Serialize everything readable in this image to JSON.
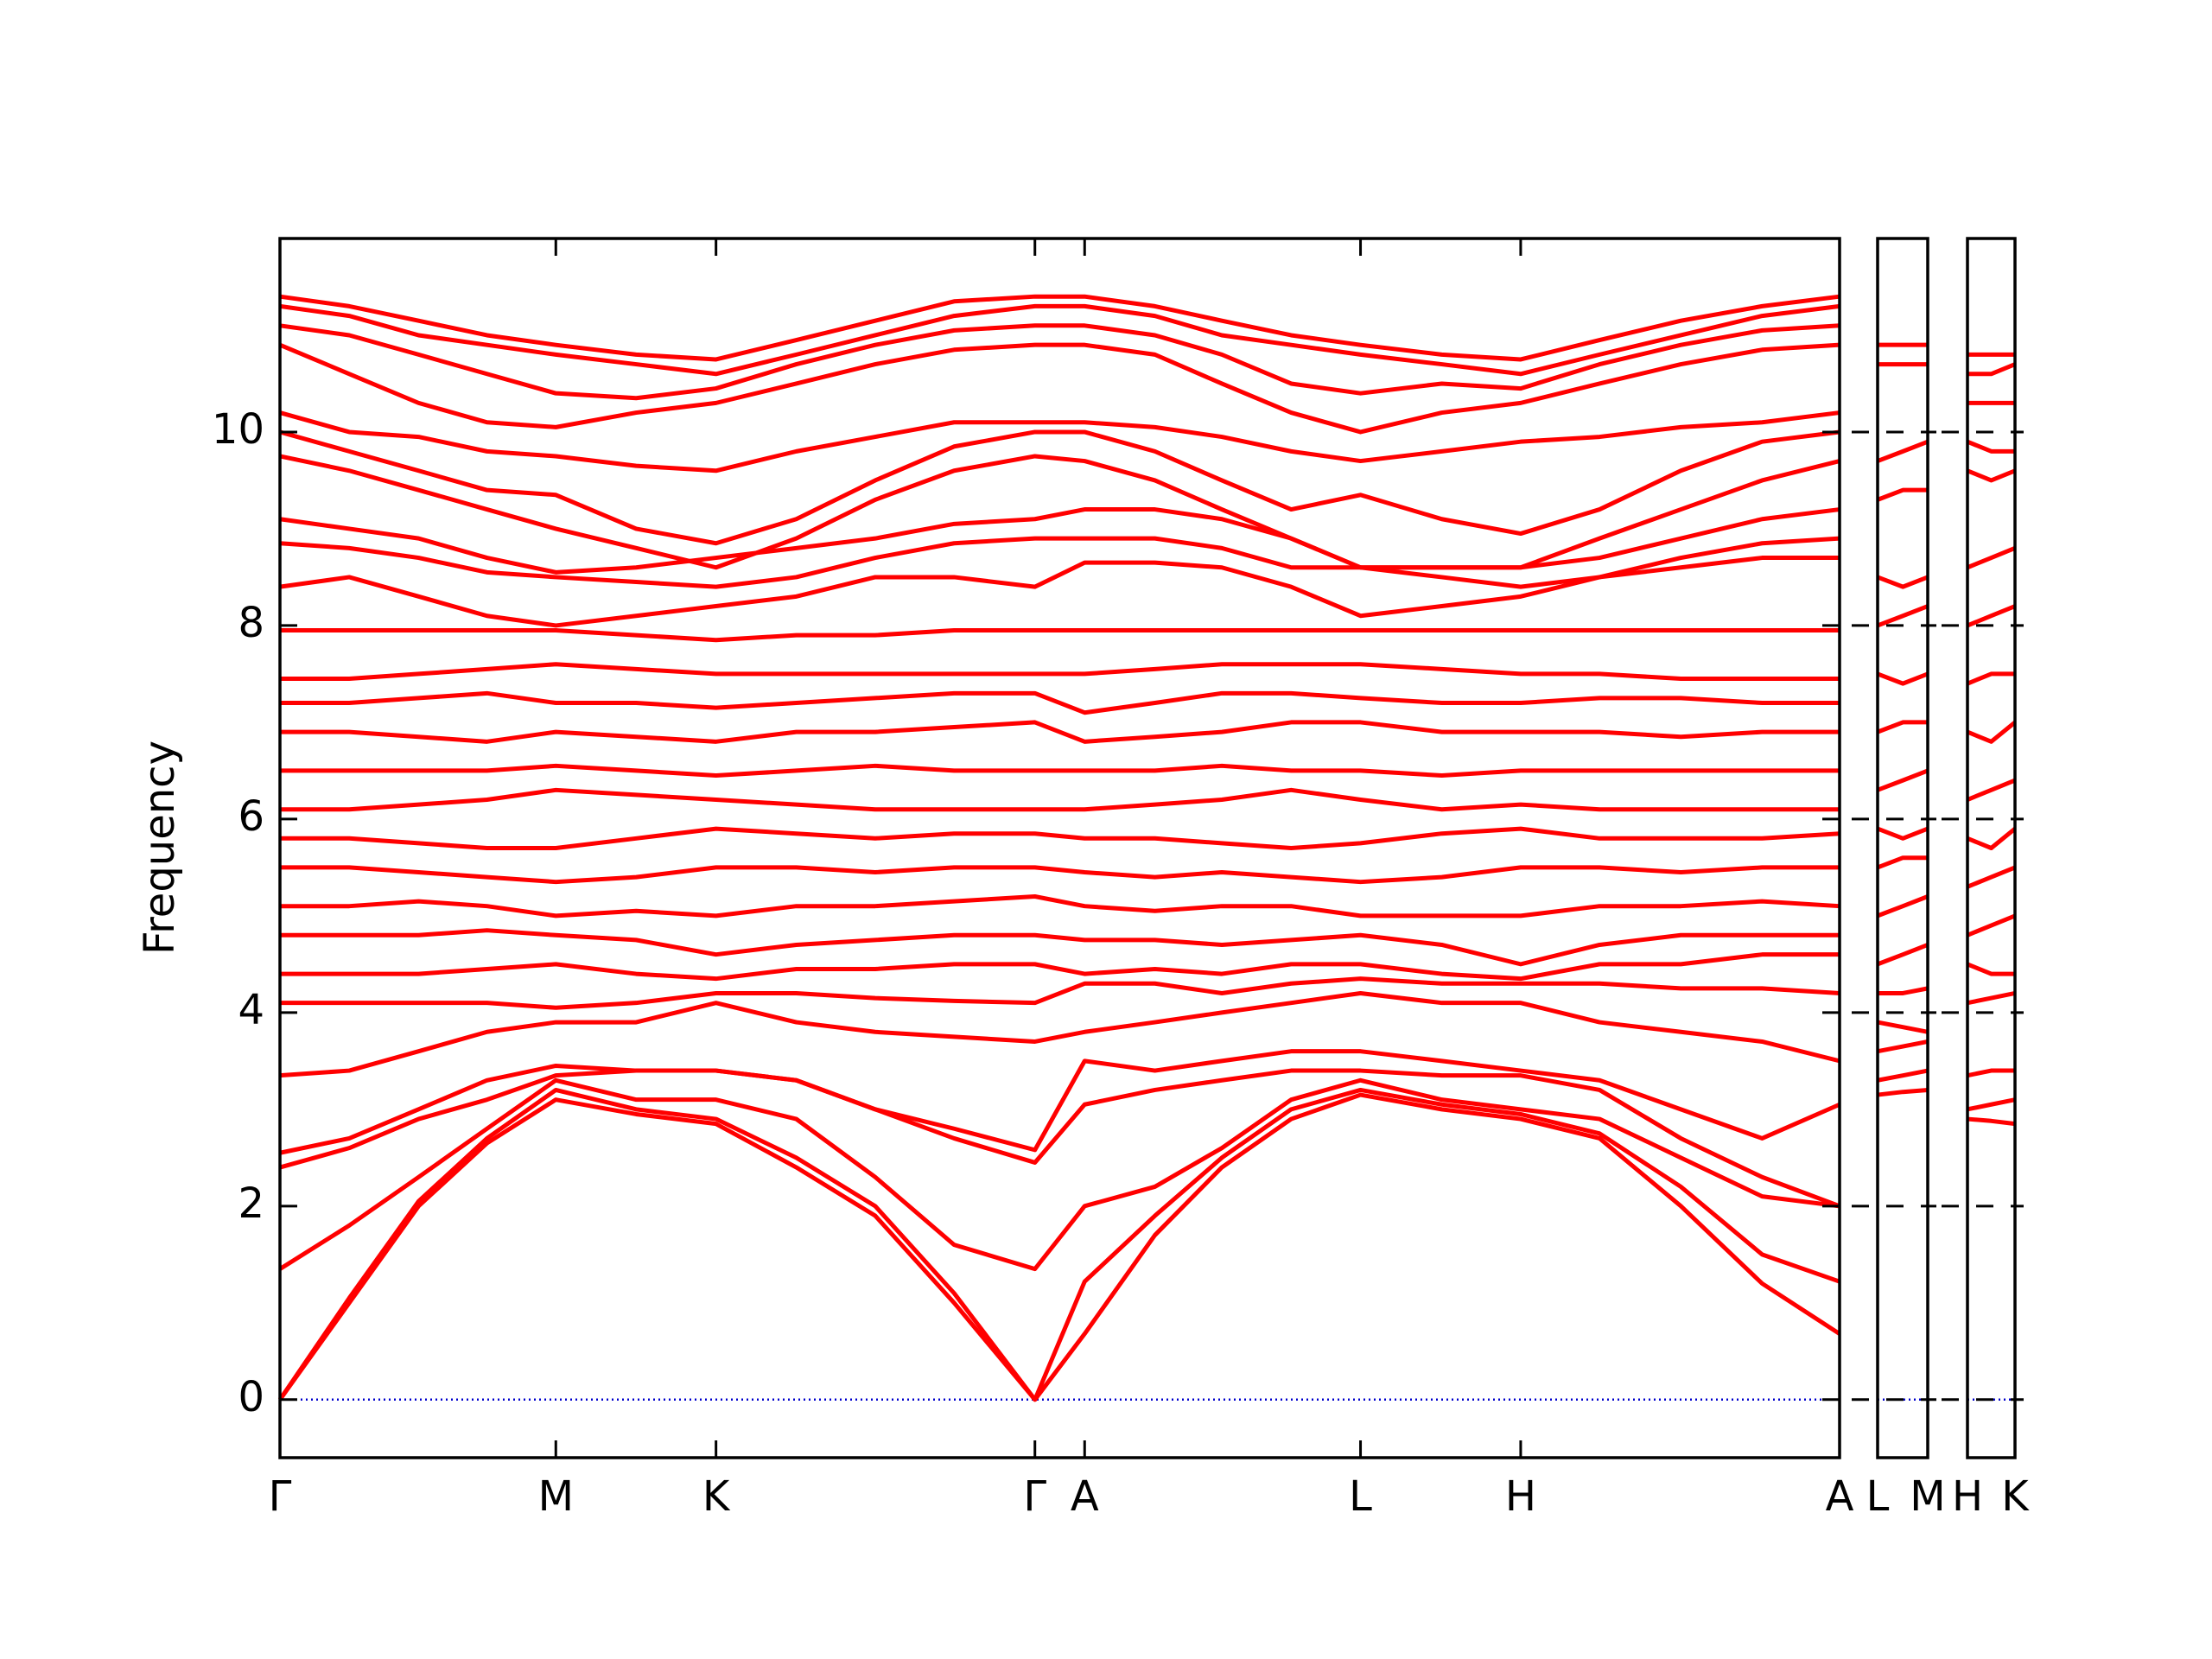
{
  "chart_data": [
    {
      "type": "line",
      "ylabel": "Frequency",
      "color": "#ff0000",
      "hline": 0,
      "hline_color": "#0000cc",
      "xlim": [
        0,
        3.262
      ],
      "ylim": [
        -0.6,
        12
      ],
      "xticks": [
        {
          "value": 0,
          "label": "Γ"
        },
        {
          "value": 0.577,
          "label": "M"
        },
        {
          "value": 0.912,
          "label": "K"
        },
        {
          "value": 1.579,
          "label": "Γ"
        },
        {
          "value": 1.683,
          "label": "A"
        },
        {
          "value": 2.26,
          "label": "L"
        },
        {
          "value": 2.595,
          "label": "H"
        },
        {
          "value": 3.262,
          "label": "A"
        }
      ],
      "yticks": [
        0,
        2,
        4,
        6,
        8,
        10
      ],
      "x": [
        0,
        0.145,
        0.29,
        0.433,
        0.577,
        0.745,
        0.912,
        1.08,
        1.245,
        1.41,
        1.579,
        1.683,
        1.83,
        1.97,
        2.115,
        2.26,
        2.43,
        2.595,
        2.76,
        2.93,
        3.1,
        3.262
      ],
      "series": [
        {
          "values": [
            0,
            1.0,
            2.0,
            2.65,
            3.1,
            2.95,
            2.85,
            2.4,
            1.9,
            1.0,
            0,
            0.68,
            1.7,
            2.4,
            2.9,
            3.15,
            3.0,
            2.9,
            2.7,
            2.0,
            1.2,
            0.68
          ]
        },
        {
          "values": [
            0,
            1.05,
            2.05,
            2.7,
            3.2,
            3.0,
            2.9,
            2.5,
            2.0,
            1.1,
            0,
            1.22,
            1.9,
            2.5,
            3.0,
            3.2,
            3.05,
            2.95,
            2.75,
            2.2,
            1.5,
            1.22
          ]
        },
        {
          "values": [
            1.35,
            1.8,
            2.3,
            2.8,
            3.3,
            3.1,
            3.1,
            2.9,
            2.3,
            1.6,
            1.35,
            2.0,
            2.2,
            2.6,
            3.1,
            3.3,
            3.1,
            3.0,
            2.9,
            2.5,
            2.1,
            2.0
          ]
        },
        {
          "values": [
            2.4,
            2.6,
            2.9,
            3.1,
            3.35,
            3.4,
            3.4,
            3.3,
            3.0,
            2.7,
            2.45,
            3.05,
            3.2,
            3.3,
            3.4,
            3.4,
            3.35,
            3.35,
            3.2,
            2.7,
            2.3,
            2.0
          ]
        },
        {
          "values": [
            2.55,
            2.7,
            3.0,
            3.3,
            3.45,
            3.4,
            3.4,
            3.3,
            3.0,
            2.8,
            2.58,
            3.5,
            3.4,
            3.5,
            3.6,
            3.6,
            3.5,
            3.4,
            3.3,
            3.0,
            2.7,
            3.05
          ]
        },
        {
          "values": [
            3.35,
            3.4,
            3.6,
            3.8,
            3.9,
            3.9,
            4.1,
            3.9,
            3.8,
            3.75,
            3.7,
            3.8,
            3.9,
            4.0,
            4.1,
            4.2,
            4.1,
            4.1,
            3.9,
            3.8,
            3.7,
            3.5
          ]
        },
        {
          "values": [
            4.1,
            4.1,
            4.1,
            4.1,
            4.05,
            4.1,
            4.2,
            4.2,
            4.15,
            4.12,
            4.1,
            4.3,
            4.3,
            4.2,
            4.3,
            4.35,
            4.3,
            4.3,
            4.3,
            4.25,
            4.25,
            4.2
          ]
        },
        {
          "values": [
            4.4,
            4.4,
            4.4,
            4.45,
            4.5,
            4.4,
            4.35,
            4.45,
            4.45,
            4.5,
            4.5,
            4.4,
            4.45,
            4.4,
            4.5,
            4.5,
            4.4,
            4.35,
            4.5,
            4.5,
            4.6,
            4.6
          ]
        },
        {
          "values": [
            4.8,
            4.8,
            4.8,
            4.85,
            4.8,
            4.75,
            4.6,
            4.7,
            4.75,
            4.8,
            4.8,
            4.75,
            4.75,
            4.7,
            4.75,
            4.8,
            4.7,
            4.5,
            4.7,
            4.8,
            4.8,
            4.8
          ]
        },
        {
          "values": [
            5.1,
            5.1,
            5.15,
            5.1,
            5.0,
            5.05,
            5.0,
            5.1,
            5.1,
            5.15,
            5.2,
            5.1,
            5.05,
            5.1,
            5.1,
            5.0,
            5.0,
            5.0,
            5.1,
            5.1,
            5.15,
            5.1
          ]
        },
        {
          "values": [
            5.5,
            5.5,
            5.45,
            5.4,
            5.35,
            5.4,
            5.5,
            5.5,
            5.45,
            5.5,
            5.5,
            5.45,
            5.4,
            5.45,
            5.4,
            5.35,
            5.4,
            5.5,
            5.5,
            5.45,
            5.5,
            5.5
          ]
        },
        {
          "values": [
            5.8,
            5.8,
            5.75,
            5.7,
            5.7,
            5.8,
            5.9,
            5.85,
            5.8,
            5.85,
            5.85,
            5.8,
            5.8,
            5.75,
            5.7,
            5.75,
            5.85,
            5.9,
            5.8,
            5.8,
            5.8,
            5.85
          ]
        },
        {
          "values": [
            6.1,
            6.1,
            6.15,
            6.2,
            6.3,
            6.25,
            6.2,
            6.15,
            6.1,
            6.1,
            6.1,
            6.1,
            6.15,
            6.2,
            6.3,
            6.2,
            6.1,
            6.15,
            6.1,
            6.1,
            6.1,
            6.1
          ]
        },
        {
          "values": [
            6.5,
            6.5,
            6.5,
            6.5,
            6.55,
            6.5,
            6.45,
            6.5,
            6.55,
            6.5,
            6.5,
            6.5,
            6.5,
            6.55,
            6.5,
            6.5,
            6.45,
            6.5,
            6.5,
            6.5,
            6.5,
            6.5
          ]
        },
        {
          "values": [
            6.9,
            6.9,
            6.85,
            6.8,
            6.9,
            6.85,
            6.8,
            6.9,
            6.9,
            6.95,
            7.0,
            6.8,
            6.85,
            6.9,
            7.0,
            7.0,
            6.9,
            6.9,
            6.9,
            6.85,
            6.9,
            6.9
          ]
        },
        {
          "values": [
            7.2,
            7.2,
            7.25,
            7.3,
            7.2,
            7.2,
            7.15,
            7.2,
            7.25,
            7.3,
            7.3,
            7.1,
            7.2,
            7.3,
            7.3,
            7.25,
            7.2,
            7.2,
            7.25,
            7.25,
            7.2,
            7.2
          ]
        },
        {
          "values": [
            7.45,
            7.45,
            7.5,
            7.55,
            7.6,
            7.55,
            7.5,
            7.5,
            7.5,
            7.5,
            7.5,
            7.5,
            7.55,
            7.6,
            7.6,
            7.6,
            7.55,
            7.5,
            7.5,
            7.45,
            7.45,
            7.45
          ]
        },
        {
          "values": [
            7.95,
            7.95,
            7.95,
            7.95,
            7.95,
            7.9,
            7.85,
            7.9,
            7.9,
            7.95,
            7.95,
            7.95,
            7.95,
            7.95,
            7.95,
            7.95,
            7.95,
            7.95,
            7.95,
            7.95,
            7.95,
            7.95
          ]
        },
        {
          "values": [
            8.4,
            8.5,
            8.3,
            8.1,
            8.0,
            8.1,
            8.2,
            8.3,
            8.5,
            8.5,
            8.4,
            8.65,
            8.65,
            8.6,
            8.4,
            8.1,
            8.2,
            8.3,
            8.5,
            8.6,
            8.7,
            8.7
          ]
        },
        {
          "values": [
            8.85,
            8.8,
            8.7,
            8.55,
            8.5,
            8.45,
            8.4,
            8.5,
            8.7,
            8.85,
            8.9,
            8.9,
            8.9,
            8.8,
            8.6,
            8.6,
            8.5,
            8.4,
            8.5,
            8.7,
            8.85,
            8.9
          ]
        },
        {
          "values": [
            9.1,
            9.0,
            8.9,
            8.7,
            8.55,
            8.6,
            8.7,
            8.8,
            8.9,
            9.05,
            9.1,
            9.2,
            9.2,
            9.1,
            8.9,
            8.6,
            8.6,
            8.6,
            8.7,
            8.9,
            9.1,
            9.2
          ]
        },
        {
          "values": [
            9.75,
            9.6,
            9.4,
            9.2,
            9.0,
            8.8,
            8.6,
            8.9,
            9.3,
            9.6,
            9.75,
            9.7,
            9.5,
            9.2,
            8.9,
            8.6,
            8.6,
            8.6,
            8.9,
            9.2,
            9.5,
            9.7
          ]
        },
        {
          "values": [
            10.0,
            9.8,
            9.6,
            9.4,
            9.35,
            9.0,
            8.85,
            9.1,
            9.5,
            9.85,
            10.0,
            10.0,
            9.8,
            9.5,
            9.2,
            9.35,
            9.1,
            8.95,
            9.2,
            9.6,
            9.9,
            10.0
          ]
        },
        {
          "values": [
            10.2,
            10.0,
            9.95,
            9.8,
            9.75,
            9.65,
            9.6,
            9.8,
            9.95,
            10.1,
            10.1,
            10.1,
            10.05,
            9.95,
            9.8,
            9.7,
            9.8,
            9.9,
            9.95,
            10.05,
            10.1,
            10.2
          ]
        },
        {
          "values": [
            10.9,
            10.6,
            10.3,
            10.1,
            10.05,
            10.2,
            10.3,
            10.5,
            10.7,
            10.85,
            10.9,
            10.9,
            10.8,
            10.5,
            10.2,
            10.0,
            10.2,
            10.3,
            10.5,
            10.7,
            10.85,
            10.9
          ]
        },
        {
          "values": [
            11.1,
            11.0,
            10.8,
            10.6,
            10.4,
            10.35,
            10.45,
            10.7,
            10.9,
            11.05,
            11.1,
            11.1,
            11.0,
            10.8,
            10.5,
            10.4,
            10.5,
            10.45,
            10.7,
            10.9,
            11.05,
            11.1
          ]
        },
        {
          "values": [
            11.3,
            11.2,
            11.0,
            10.9,
            10.8,
            10.7,
            10.6,
            10.8,
            11.0,
            11.2,
            11.3,
            11.3,
            11.2,
            11.0,
            10.9,
            10.8,
            10.7,
            10.6,
            10.8,
            11.0,
            11.2,
            11.3
          ]
        },
        {
          "values": [
            11.4,
            11.3,
            11.15,
            11.0,
            10.9,
            10.8,
            10.75,
            10.95,
            11.15,
            11.35,
            11.4,
            11.4,
            11.3,
            11.15,
            11.0,
            10.9,
            10.8,
            10.75,
            10.95,
            11.15,
            11.3,
            11.4
          ]
        }
      ]
    },
    {
      "type": "line",
      "color": "#ff0000",
      "hline": 0,
      "hline_color": "#0000cc",
      "xlim": [
        0,
        0.105
      ],
      "ylim": [
        -0.6,
        12
      ],
      "xticks": [
        {
          "value": 0,
          "label": "L"
        },
        {
          "value": 0.105,
          "label": "M"
        }
      ],
      "yticks": [
        0,
        2,
        4,
        6,
        8,
        10
      ],
      "x": [
        0,
        0.053,
        0.105
      ],
      "series": [
        {
          "values": [
            3.15,
            3.18,
            3.2
          ]
        },
        {
          "values": [
            3.3,
            3.35,
            3.4
          ]
        },
        {
          "values": [
            3.6,
            3.65,
            3.7
          ]
        },
        {
          "values": [
            3.9,
            3.85,
            3.8
          ]
        },
        {
          "values": [
            4.2,
            4.2,
            4.25
          ]
        },
        {
          "values": [
            4.5,
            4.6,
            4.7
          ]
        },
        {
          "values": [
            5.0,
            5.1,
            5.2
          ]
        },
        {
          "values": [
            5.5,
            5.6,
            5.6
          ]
        },
        {
          "values": [
            5.9,
            5.8,
            5.9
          ]
        },
        {
          "values": [
            6.3,
            6.4,
            6.5
          ]
        },
        {
          "values": [
            6.9,
            7.0,
            7.0
          ]
        },
        {
          "values": [
            7.5,
            7.4,
            7.5
          ]
        },
        {
          "values": [
            8.0,
            8.1,
            8.2
          ]
        },
        {
          "values": [
            8.5,
            8.4,
            8.5
          ]
        },
        {
          "values": [
            9.3,
            9.4,
            9.4
          ]
        },
        {
          "values": [
            9.7,
            9.8,
            9.9
          ]
        },
        {
          "values": [
            10.7,
            10.7,
            10.7
          ]
        },
        {
          "values": [
            10.9,
            10.9,
            10.9
          ]
        }
      ]
    },
    {
      "type": "line",
      "color": "#ff0000",
      "hline": 0,
      "hline_color": "#0000cc",
      "xlim": [
        0,
        0.1
      ],
      "ylim": [
        -0.6,
        12
      ],
      "xticks": [
        {
          "value": 0,
          "label": "H"
        },
        {
          "value": 0.1,
          "label": "K"
        }
      ],
      "yticks": [
        0,
        2,
        4,
        6,
        8,
        10
      ],
      "x": [
        0,
        0.05,
        0.1
      ],
      "series": [
        {
          "values": [
            2.9,
            2.88,
            2.85
          ]
        },
        {
          "values": [
            3.0,
            3.05,
            3.1
          ]
        },
        {
          "values": [
            3.35,
            3.4,
            3.4
          ]
        },
        {
          "values": [
            4.1,
            4.15,
            4.2
          ]
        },
        {
          "values": [
            4.5,
            4.4,
            4.4
          ]
        },
        {
          "values": [
            4.8,
            4.9,
            5.0
          ]
        },
        {
          "values": [
            5.3,
            5.4,
            5.5
          ]
        },
        {
          "values": [
            5.8,
            5.7,
            5.9
          ]
        },
        {
          "values": [
            6.2,
            6.3,
            6.4
          ]
        },
        {
          "values": [
            6.9,
            6.8,
            7.0
          ]
        },
        {
          "values": [
            7.4,
            7.5,
            7.5
          ]
        },
        {
          "values": [
            8.0,
            8.1,
            8.2
          ]
        },
        {
          "values": [
            8.6,
            8.7,
            8.8
          ]
        },
        {
          "values": [
            9.6,
            9.5,
            9.6
          ]
        },
        {
          "values": [
            9.9,
            9.8,
            9.8
          ]
        },
        {
          "values": [
            10.3,
            10.3,
            10.3
          ]
        },
        {
          "values": [
            10.6,
            10.6,
            10.7
          ]
        },
        {
          "values": [
            10.8,
            10.8,
            10.8
          ]
        }
      ]
    }
  ]
}
